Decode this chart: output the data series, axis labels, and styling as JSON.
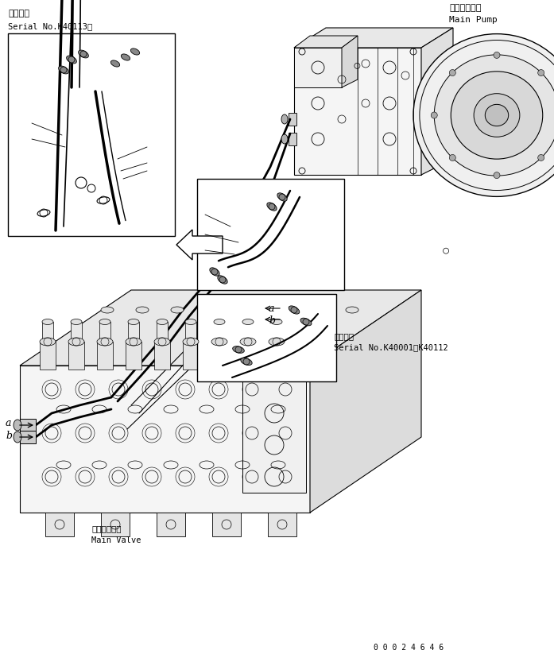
{
  "bg_color": "#ffffff",
  "line_color": "#000000",
  "fig_width": 6.97,
  "fig_height": 8.23,
  "dpi": 100,
  "title_top_left_jp": "適用号機",
  "title_top_left_en": "Serial No.K40113～",
  "title_top_right_jp": "メインポンプ",
  "title_top_right_en": "Main Pump",
  "label_bottom_left_jp": "メインバルブ",
  "label_bottom_left_en": "Main Valve",
  "label_mid_right_jp": "適用号機",
  "label_mid_right_en": "Serial No.K40001～K40112",
  "part_number": "0 0 0 2 4 6 4 6",
  "label_a": "a",
  "label_b": "b"
}
